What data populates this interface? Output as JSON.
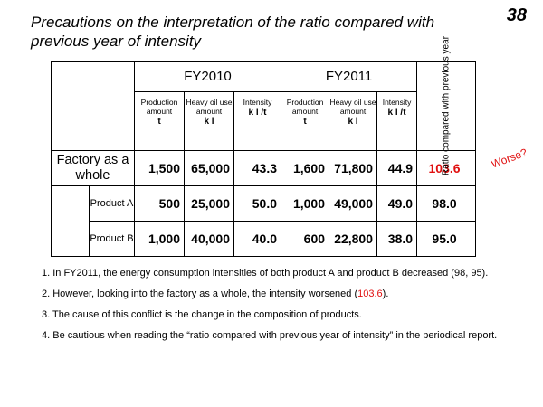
{
  "slide_number": "38",
  "title": "Precautions on the interpretation of the ratio compared with previous year of intensity",
  "table": {
    "fy2010": "FY2010",
    "fy2011": "FY2011",
    "ratio_header": "Ratio compared with previous year",
    "sub": {
      "production": "Production amount",
      "production_unit": "t",
      "heavy_oil": "Heavy oil use amount",
      "heavy_oil_unit": "k l",
      "intensity": "Intensity",
      "intensity_unit": "k l /t"
    },
    "rows": [
      {
        "label": "Factory as a whole",
        "p2010": "1,500",
        "h2010": "65,000",
        "i2010": "43.3",
        "p2011": "1,600",
        "h2011": "71,800",
        "i2011": "44.9",
        "ratio": "103.6"
      },
      {
        "label": "Product A",
        "p2010": "500",
        "h2010": "25,000",
        "i2010": "50.0",
        "p2011": "1,000",
        "h2011": "49,000",
        "i2011": "49.0",
        "ratio": "98.0"
      },
      {
        "label": "Product B",
        "p2010": "1,000",
        "h2010": "40,000",
        "i2010": "40.0",
        "p2011": "600",
        "h2011": "22,800",
        "i2011": "38.0",
        "ratio": "95.0"
      }
    ]
  },
  "annotation": "Worse?",
  "notes": {
    "n1": "1. In FY2011, the energy consumption intensities of both product A and product B decreased (98, 95).",
    "n2_pre": "2. However, looking into the factory as a whole, the intensity worsened (",
    "n2_val": "103.6",
    "n2_post": ").",
    "n3": "3. The cause of this conflict is the change in the composition of products.",
    "n4": "4. Be cautious when reading the “ratio compared with previous year of intensity” in the periodical report."
  },
  "colors": {
    "highlight": "#e01010"
  }
}
